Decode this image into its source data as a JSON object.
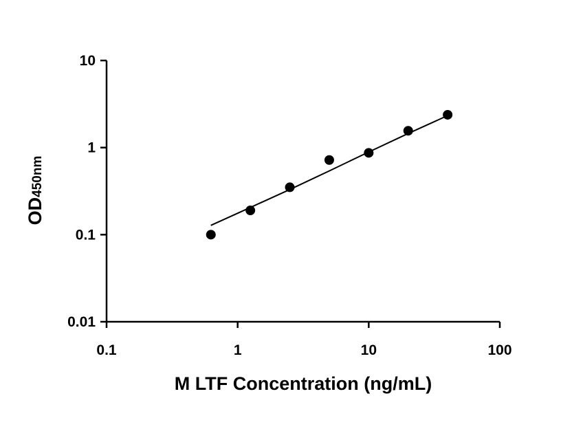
{
  "chart_data": {
    "type": "scatter",
    "title": "",
    "xlabel": "M LTF Concentration (ng/mL)",
    "ylabel_main": "OD",
    "ylabel_sub": "450nm",
    "x_scale": "log",
    "y_scale": "log",
    "xlim": [
      0.1,
      100
    ],
    "ylim": [
      0.01,
      10
    ],
    "x_ticks": [
      "0.1",
      "1",
      "10",
      "100"
    ],
    "y_ticks": [
      "0.01",
      "0.1",
      "1",
      "10"
    ],
    "grid": false,
    "legend": "none",
    "series": [
      {
        "x": [
          0.625,
          1.25,
          2.5,
          5,
          10,
          20,
          40
        ],
        "y": [
          0.1,
          0.19,
          0.35,
          0.72,
          0.87,
          1.56,
          2.38
        ]
      }
    ],
    "fit_curve": {
      "x": [
        0.625,
        1.25,
        2.5,
        5,
        10,
        20,
        40
      ],
      "y": [
        0.128,
        0.205,
        0.33,
        0.54,
        0.89,
        1.45,
        2.33
      ]
    },
    "colors": {
      "marker": "#000000",
      "axis": "#000000",
      "fit": "#000000"
    }
  }
}
